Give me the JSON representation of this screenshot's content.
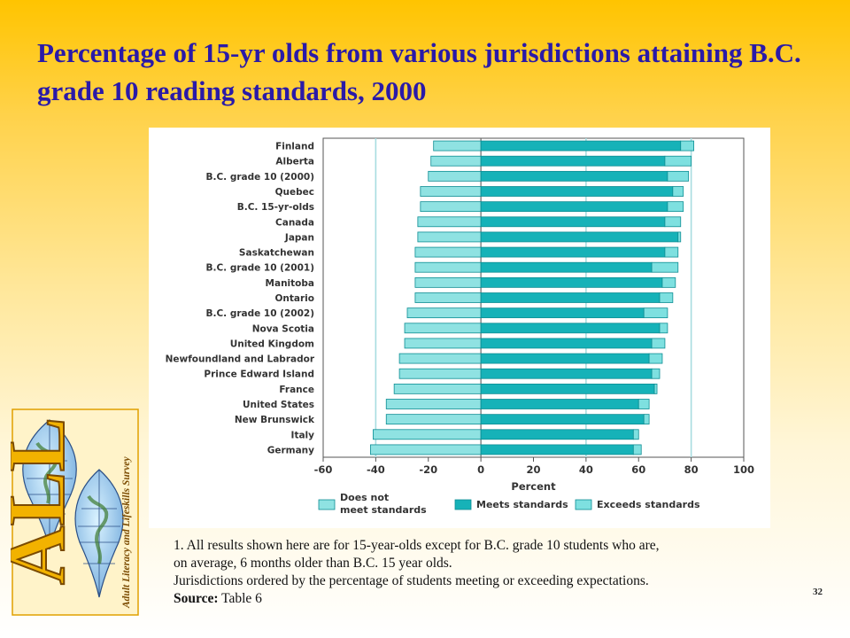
{
  "title": "Percentage of 15-yr olds from various jurisdictions attaining B.C. grade 10 reading standards, 2000",
  "notes": {
    "line1": "1. All results shown here are for 15-year-olds except for B.C. grade 10 students who are,",
    "line2": "on average, 6 months older than B.C. 15 year olds.",
    "line3": "Jurisdictions ordered by the percentage of students meeting or exceeding expectations.",
    "source_label": "Source:",
    "source_value": " Table 6"
  },
  "page_number": "32",
  "logo": {
    "letters": "ALL",
    "text": "Adult Literacy and Lifeskills Survey"
  },
  "colors": {
    "meets": "#16b2b8",
    "exceeds": "#7ee0e0",
    "not_meet": "#8fe2e2",
    "bar_border": "#0d8d93",
    "axis": "#555555",
    "title": "#2a1aa8"
  },
  "chart_data": {
    "type": "bar",
    "orientation": "horizontal",
    "stacked": true,
    "xlabel": "Percent",
    "xlim": [
      -60,
      100
    ],
    "xticks": [
      -60,
      -40,
      -20,
      0,
      20,
      40,
      60,
      80,
      100
    ],
    "gridlines": [
      -40,
      0,
      40,
      80
    ],
    "legend_position": "bottom",
    "categories": [
      "Finland",
      "Alberta",
      "B.C. grade 10 (2000)",
      "Quebec",
      "B.C. 15-yr-olds",
      "Canada",
      "Japan",
      "Saskatchewan",
      "B.C. grade 10 (2001)",
      "Manitoba",
      "Ontario",
      "B.C. grade 10 (2002)",
      "Nova Scotia",
      "United Kingdom",
      "Newfoundland and Labrador",
      "Prince Edward Island",
      "France",
      "United States",
      "New Brunswick",
      "Italy",
      "Germany"
    ],
    "series": [
      {
        "name": "Does not meet standards",
        "values": [
          -18,
          -19,
          -20,
          -23,
          -23,
          -24,
          -24,
          -25,
          -25,
          -25,
          -25,
          -28,
          -29,
          -29,
          -31,
          -31,
          -33,
          -36,
          -36,
          -41,
          -42
        ]
      },
      {
        "name": "Meets standards",
        "values": [
          76,
          70,
          71,
          73,
          71,
          70,
          75,
          70,
          65,
          69,
          68,
          62,
          68,
          65,
          64,
          65,
          66,
          60,
          62,
          58,
          58
        ]
      },
      {
        "name": "Exceeds standards",
        "values": [
          5,
          10,
          8,
          4,
          6,
          6,
          1,
          5,
          10,
          5,
          5,
          9,
          3,
          5,
          5,
          3,
          1,
          4,
          2,
          2,
          3
        ]
      }
    ]
  }
}
